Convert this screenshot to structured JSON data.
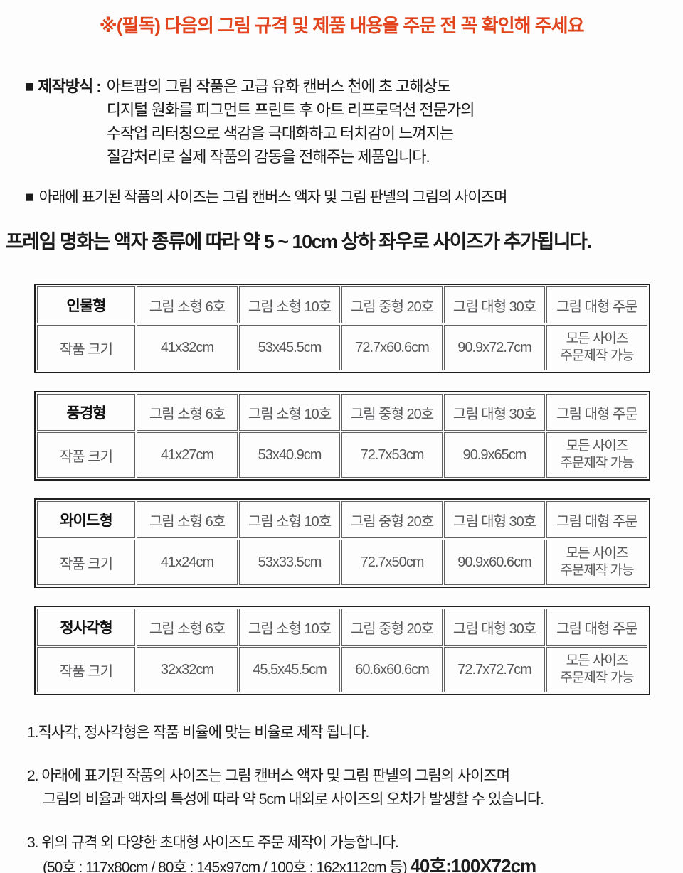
{
  "colors": {
    "notice_red": "#e2441e",
    "table_text_gray": "#57585a",
    "border_dark": "#1f1f1f"
  },
  "top_notice": "※(필독) 다음의 그림 규격 및 제품 내용을 주문 전 꼭 확인해 주세요",
  "production": {
    "bullet": "■",
    "label": "제작방식 :",
    "lines": [
      "아트팝의 그림 작품은 고급 유화 캔버스 천에 초 고해상도",
      "디지털 원화를 피그먼트 프린트 후 아트 리프로덕션 전문가의",
      "수작업 리터칭으로 색감을 극대화하고 터치감이 느껴지는",
      "질감처리로 실제 작품의 감동을 전해주는 제품입니다."
    ]
  },
  "size_bullet": {
    "bullet": "■",
    "text": "아래에 표기된 작품의 사이즈는 그림 캔버스 액자 및 그림 판넬의 그림의 사이즈며"
  },
  "frame_note": "프레임 명화는 액자 종류에 따라 약 5 ~ 10cm 상하 좌우로 사이즈가 추가됩니다.",
  "tables": [
    {
      "type_label": "인물형",
      "row_label": "작품 크기",
      "columns": [
        "그림 소형 6호",
        "그림 소형 10호",
        "그림 중형 20호",
        "그림 대형 30호",
        "그림 대형 주문"
      ],
      "sizes": [
        "41x32cm",
        "53x45.5cm",
        "72.7x60.6cm",
        "90.9x72.7cm"
      ],
      "custom": [
        "모든 사이즈",
        "주문제작 가능"
      ]
    },
    {
      "type_label": "풍경형",
      "row_label": "작품 크기",
      "columns": [
        "그림 소형 6호",
        "그림 소형 10호",
        "그림 중형 20호",
        "그림 대형 30호",
        "그림 대형 주문"
      ],
      "sizes": [
        "41x27cm",
        "53x40.9cm",
        "72.7x53cm",
        "90.9x65cm"
      ],
      "custom": [
        "모든 사이즈",
        "주문제작 가능"
      ]
    },
    {
      "type_label": "와이드형",
      "row_label": "작품 크기",
      "columns": [
        "그림 소형 6호",
        "그림 소형 10호",
        "그림 중형 20호",
        "그림 대형 30호",
        "그림 대형 주문"
      ],
      "sizes": [
        "41x24cm",
        "53x33.5cm",
        "72.7x50cm",
        "90.9x60.6cm"
      ],
      "custom": [
        "모든 사이즈",
        "주문제작 가능"
      ]
    },
    {
      "type_label": "정사각형",
      "row_label": "작품 크기",
      "columns": [
        "그림 소형 6호",
        "그림 소형 10호",
        "그림 중형 20호",
        "그림 대형 30호",
        "그림 대형 주문"
      ],
      "sizes": [
        "32x32cm",
        "45.5x45.5cm",
        "60.6x60.6cm",
        "72.7x72.7cm"
      ],
      "custom": [
        "모든 사이즈",
        "주문제작 가능"
      ]
    }
  ],
  "notes": {
    "n1_line1": "1.직사각, 정사각형은 작품 비율에 맞는 비율로 제작 됩니다.",
    "n2_line1": "2. 아래에 표기된 작품의 사이즈는 그림 캔버스 액자 및 그림 판넬의 그림의 사이즈며",
    "n2_line2": "그림의 비율과 액자의 특성에 따라 약 5cm 내외로 사이즈의 오차가 발생할 수 있습니다.",
    "n3_line1": "3. 위의 규격 외 다양한 초대형 사이즈도 주문 제작이 가능합니다.",
    "n3_line2": "(50호 : 117x80cm / 80호 : 145x97cm / 100호 : 162x112cm 등)",
    "n3_bold": "40호:100X72cm"
  }
}
